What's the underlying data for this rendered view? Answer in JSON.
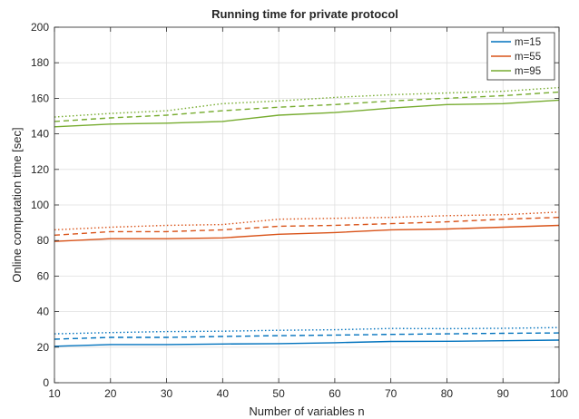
{
  "chart_data": {
    "type": "line",
    "title": "Running time for private protocol",
    "xlabel": "Number of variables n",
    "ylabel": "Online computation time [sec]",
    "xlim": [
      10,
      100
    ],
    "ylim": [
      0,
      200
    ],
    "xticks": [
      10,
      20,
      30,
      40,
      50,
      60,
      70,
      80,
      90,
      100
    ],
    "yticks": [
      0,
      20,
      40,
      60,
      80,
      100,
      120,
      140,
      160,
      180,
      200
    ],
    "grid": true,
    "legend_position": "top-right",
    "x": [
      10,
      20,
      30,
      40,
      50,
      60,
      70,
      80,
      90,
      100
    ],
    "series": [
      {
        "name": "m=15",
        "style": "solid",
        "color": "#0072BD",
        "in_legend": true,
        "values": [
          20.5,
          21.5,
          21.5,
          21.8,
          22.0,
          22.5,
          23.2,
          23.3,
          23.6,
          24.0
        ]
      },
      {
        "style": "dashed",
        "color": "#0072BD",
        "in_legend": false,
        "values": [
          24.5,
          25.5,
          25.5,
          26.0,
          26.5,
          26.8,
          27.2,
          27.5,
          27.8,
          28.0
        ]
      },
      {
        "style": "dotted",
        "color": "#0072BD",
        "in_legend": false,
        "values": [
          27.5,
          28.2,
          28.8,
          29.0,
          29.5,
          29.8,
          30.5,
          30.4,
          30.6,
          31.0
        ]
      },
      {
        "name": "m=55",
        "style": "solid",
        "color": "#D95319",
        "in_legend": true,
        "values": [
          79.5,
          81.0,
          81.0,
          81.5,
          83.5,
          84.5,
          86.0,
          86.5,
          87.5,
          88.5
        ]
      },
      {
        "style": "dashed",
        "color": "#D95319",
        "in_legend": false,
        "values": [
          83.0,
          85.0,
          85.0,
          86.0,
          88.0,
          88.5,
          89.5,
          90.5,
          92.0,
          93.0
        ]
      },
      {
        "style": "dotted",
        "color": "#D95319",
        "in_legend": false,
        "values": [
          86.0,
          87.5,
          88.5,
          89.0,
          92.0,
          92.5,
          93.0,
          94.0,
          94.5,
          96.0
        ]
      },
      {
        "name": "m=95",
        "style": "solid",
        "color": "#77AC30",
        "in_legend": true,
        "values": [
          144.0,
          145.5,
          146.0,
          147.0,
          150.5,
          152.0,
          154.5,
          156.5,
          157.0,
          159.0
        ]
      },
      {
        "style": "dashed",
        "color": "#77AC30",
        "in_legend": false,
        "values": [
          147.0,
          149.0,
          150.5,
          153.0,
          155.0,
          156.5,
          158.5,
          160.0,
          161.5,
          163.5
        ]
      },
      {
        "style": "dotted",
        "color": "#77AC30",
        "in_legend": false,
        "values": [
          149.5,
          151.5,
          153.0,
          157.0,
          158.5,
          160.5,
          162.0,
          163.0,
          164.0,
          166.0
        ]
      }
    ]
  }
}
